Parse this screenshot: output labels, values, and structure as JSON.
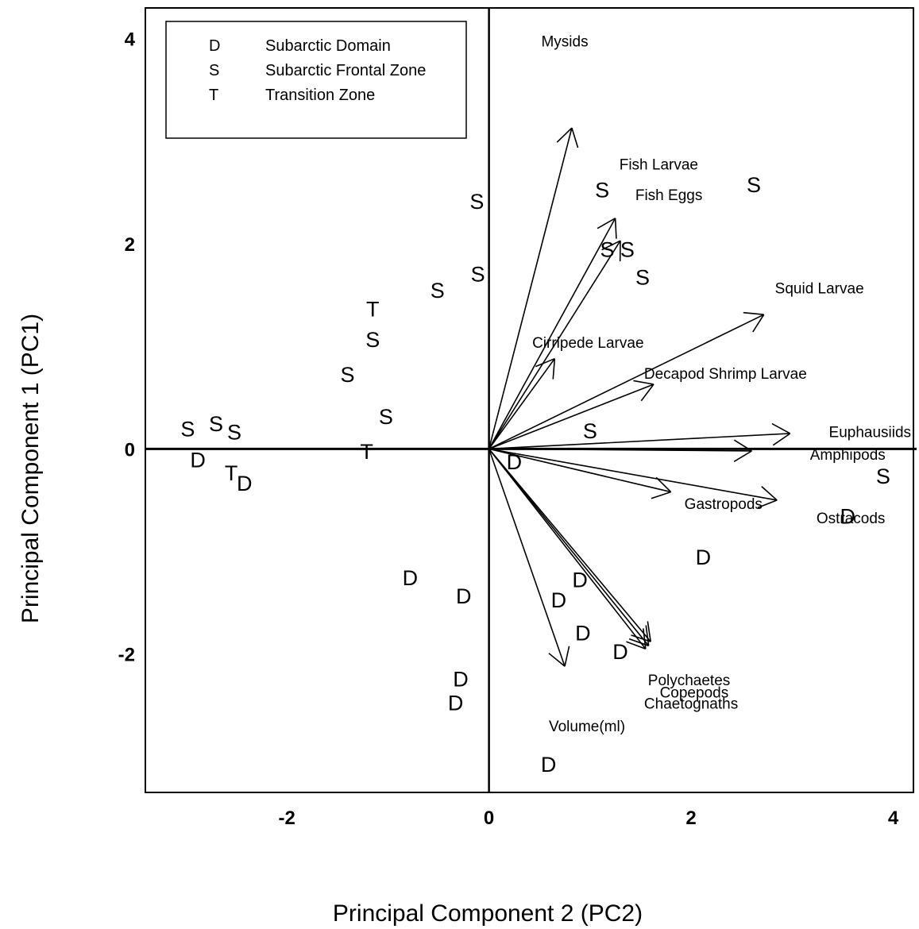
{
  "chart_data": {
    "type": "scatter",
    "subtype": "pca-biplot",
    "xlabel": "Principal Component 2 (PC2)",
    "ylabel": "Principal Component 1 (PC1)",
    "xlim": [
      -3.4,
      4.2
    ],
    "ylim": [
      -3.35,
      4.3
    ],
    "xticks": [
      -2,
      0,
      2,
      4
    ],
    "yticks": [
      -2,
      0,
      2,
      4
    ],
    "legend": {
      "position": "top-left",
      "entries": [
        {
          "symbol": "D",
          "label": "Subarctic Domain"
        },
        {
          "symbol": "S",
          "label": "Subarctic Frontal Zone"
        },
        {
          "symbol": "T",
          "label": "Transition Zone"
        }
      ]
    },
    "points": [
      {
        "x": -0.12,
        "y": 2.42,
        "label": "S"
      },
      {
        "x": 1.12,
        "y": 2.53,
        "label": "S"
      },
      {
        "x": 2.62,
        "y": 2.58,
        "label": "S"
      },
      {
        "x": 1.17,
        "y": 1.95,
        "label": "S"
      },
      {
        "x": 1.37,
        "y": 1.95,
        "label": "S"
      },
      {
        "x": 1.52,
        "y": 1.68,
        "label": "S"
      },
      {
        "x": -0.11,
        "y": 1.71,
        "label": "S"
      },
      {
        "x": -0.51,
        "y": 1.55,
        "label": "S"
      },
      {
        "x": -1.15,
        "y": 1.37,
        "label": "T"
      },
      {
        "x": -1.15,
        "y": 1.07,
        "label": "S"
      },
      {
        "x": -1.4,
        "y": 0.73,
        "label": "S"
      },
      {
        "x": -1.02,
        "y": 0.32,
        "label": "S"
      },
      {
        "x": 1.0,
        "y": 0.18,
        "label": "S"
      },
      {
        "x": -2.98,
        "y": 0.2,
        "label": "S"
      },
      {
        "x": -2.7,
        "y": 0.25,
        "label": "S"
      },
      {
        "x": -2.52,
        "y": 0.17,
        "label": "S"
      },
      {
        "x": -2.88,
        "y": -0.1,
        "label": "D"
      },
      {
        "x": -1.21,
        "y": -0.02,
        "label": "T"
      },
      {
        "x": -2.55,
        "y": -0.23,
        "label": "T"
      },
      {
        "x": -2.42,
        "y": -0.33,
        "label": "D"
      },
      {
        "x": 0.25,
        "y": -0.12,
        "label": "D"
      },
      {
        "x": 3.9,
        "y": -0.26,
        "label": "S"
      },
      {
        "x": 3.55,
        "y": -0.65,
        "label": "D"
      },
      {
        "x": 2.12,
        "y": -1.05,
        "label": "D"
      },
      {
        "x": -0.78,
        "y": -1.25,
        "label": "D"
      },
      {
        "x": -0.25,
        "y": -1.43,
        "label": "D"
      },
      {
        "x": 0.9,
        "y": -1.27,
        "label": "D"
      },
      {
        "x": 0.69,
        "y": -1.47,
        "label": "D"
      },
      {
        "x": 0.93,
        "y": -1.79,
        "label": "D"
      },
      {
        "x": 1.3,
        "y": -1.97,
        "label": "D"
      },
      {
        "x": -0.28,
        "y": -2.24,
        "label": "D"
      },
      {
        "x": -0.33,
        "y": -2.47,
        "label": "D"
      },
      {
        "x": 0.59,
        "y": -3.07,
        "label": "D"
      }
    ],
    "loadings": [
      {
        "name": "Mysids",
        "x": 0.82,
        "y": 3.13,
        "lx": 0.75,
        "ly": 3.98
      },
      {
        "name": "Fish Larvae",
        "x": 1.25,
        "y": 2.25,
        "lx": 1.68,
        "ly": 2.78
      },
      {
        "name": "Fish Eggs",
        "x": 1.3,
        "y": 2.03,
        "lx": 1.78,
        "ly": 2.48
      },
      {
        "name": "Squid Larvae",
        "x": 2.72,
        "y": 1.31,
        "lx": 3.27,
        "ly": 1.57
      },
      {
        "name": "Cirripede Larvae",
        "x": 0.65,
        "y": 0.88,
        "lx": 0.98,
        "ly": 1.04
      },
      {
        "name": "Decapod Shrimp Larvae",
        "x": 1.63,
        "y": 0.63,
        "lx": 2.34,
        "ly": 0.74
      },
      {
        "name": "Euphausiids",
        "x": 2.98,
        "y": 0.15,
        "lx": 3.77,
        "ly": 0.17
      },
      {
        "name": "Amphipods",
        "x": 2.6,
        "y": -0.02,
        "lx": 3.55,
        "ly": -0.05
      },
      {
        "name": "Gastropods",
        "x": 1.8,
        "y": -0.42,
        "lx": 2.32,
        "ly": -0.53
      },
      {
        "name": "Ostracods",
        "x": 2.85,
        "y": -0.5,
        "lx": 3.58,
        "ly": -0.67
      },
      {
        "name": "Polychaetes",
        "x": 1.6,
        "y": -1.88,
        "lx": 1.98,
        "ly": -2.25
      },
      {
        "name": "Copepods",
        "x": 1.58,
        "y": -1.92,
        "lx": 2.03,
        "ly": -2.37
      },
      {
        "name": "Chaetognaths",
        "x": 1.55,
        "y": -1.95,
        "lx": 2.0,
        "ly": -2.48
      },
      {
        "name": "Volume(ml)",
        "x": 0.75,
        "y": -2.12,
        "lx": 0.97,
        "ly": -2.7
      }
    ]
  }
}
